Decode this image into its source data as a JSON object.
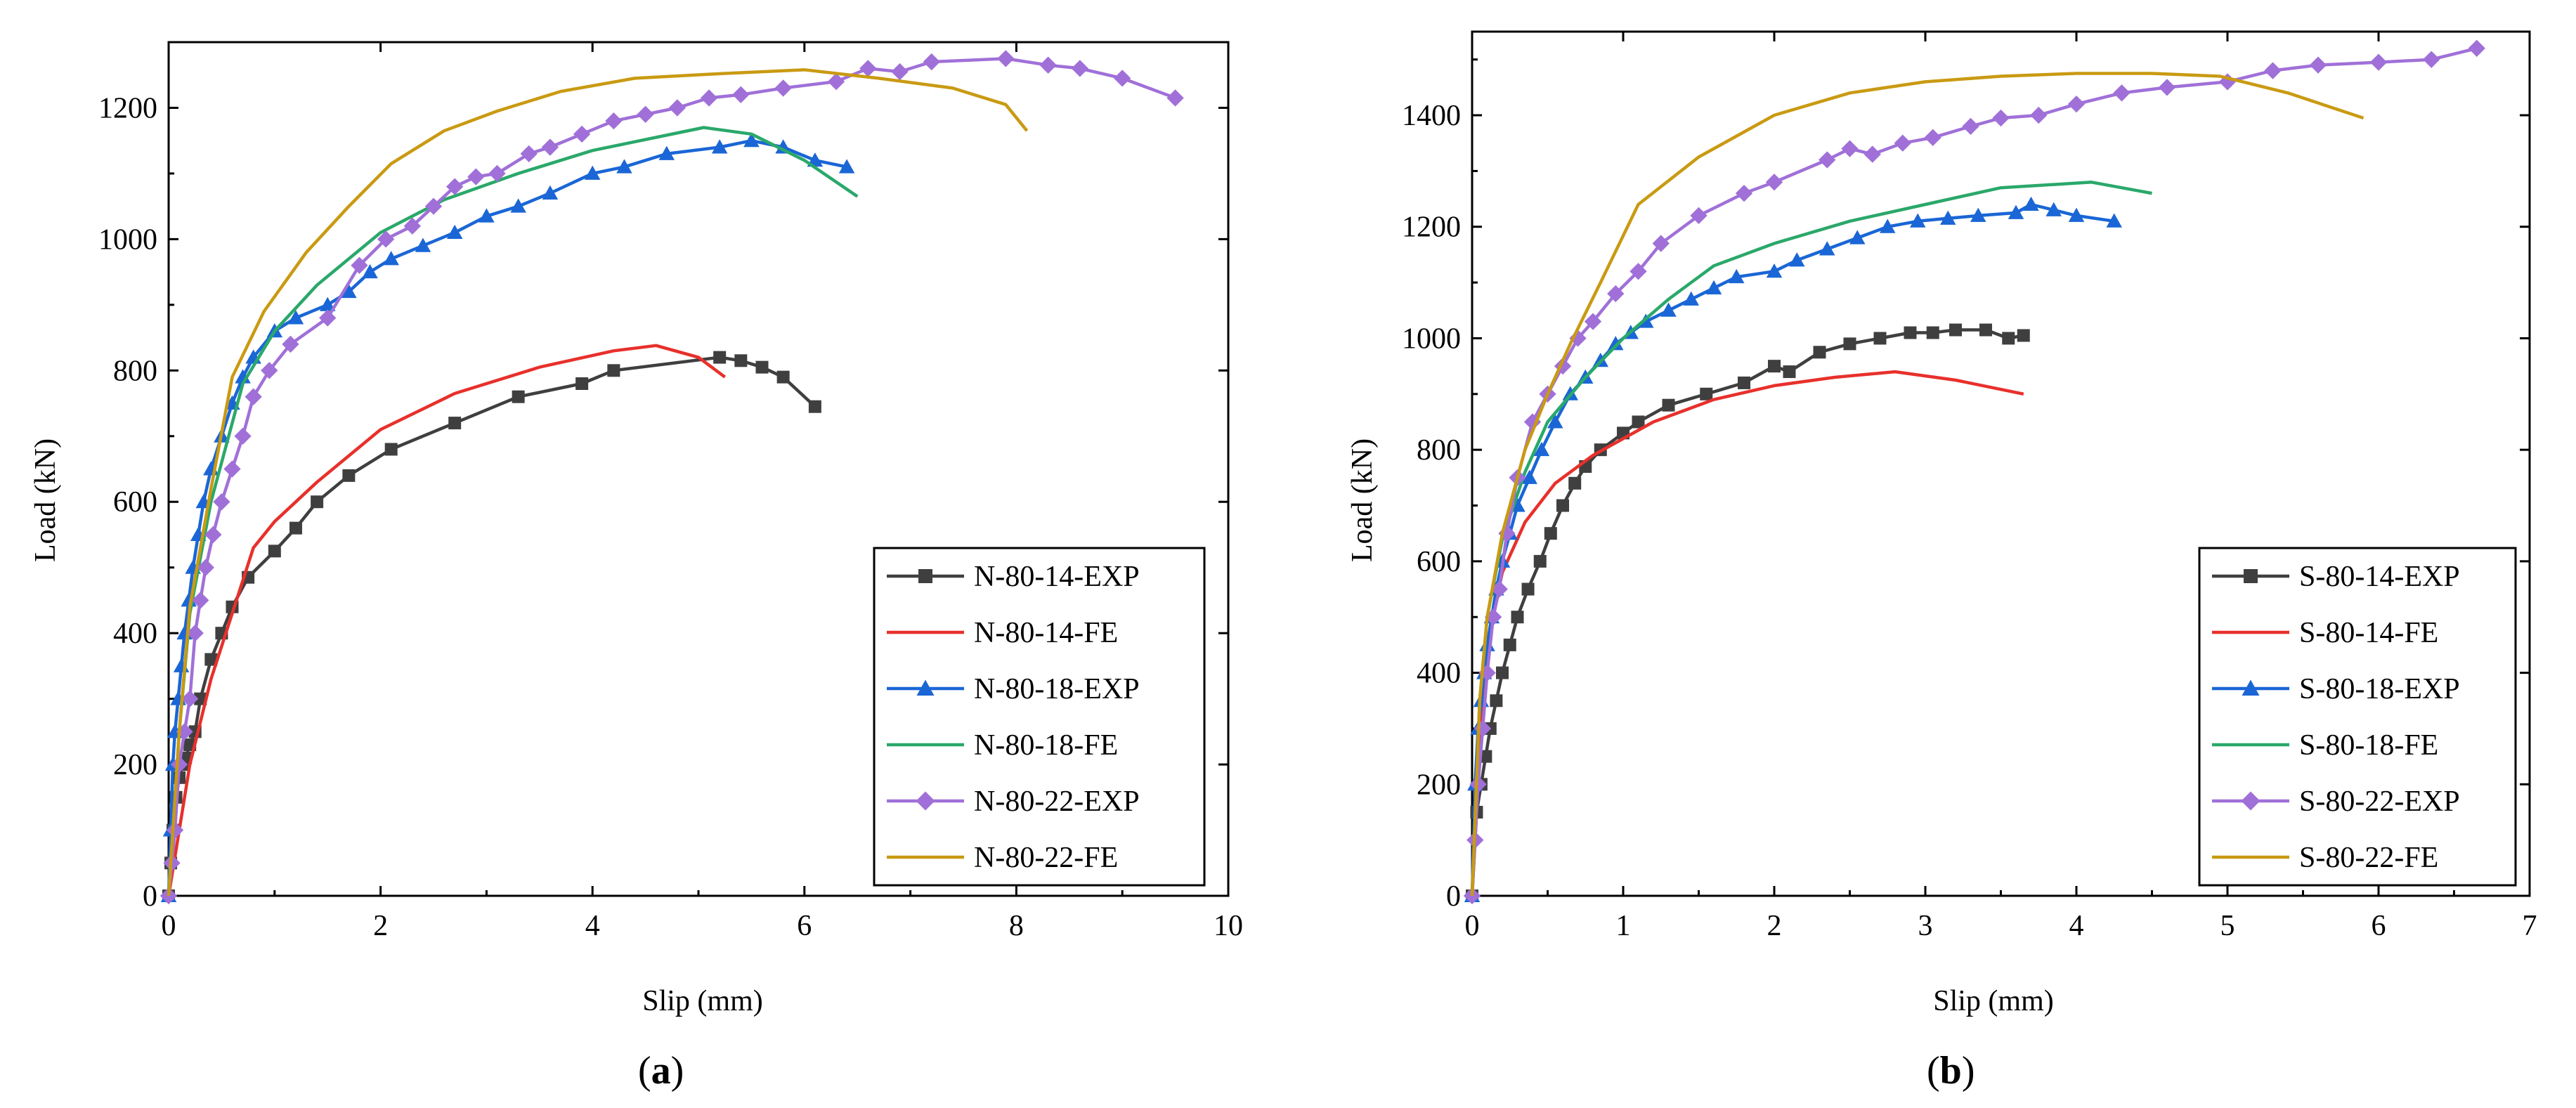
{
  "chart_data": [
    {
      "type": "line",
      "panel_label": "a",
      "title": "",
      "xlabel": "Slip (mm)",
      "ylabel": "Load (kN)",
      "xlim": [
        0,
        10
      ],
      "ylim": [
        0,
        1300
      ],
      "xticks": [
        0,
        2,
        4,
        6,
        8,
        10
      ],
      "yticks": [
        0,
        200,
        400,
        600,
        800,
        1000,
        1200
      ],
      "legend_position": "bottom-right",
      "grid": false,
      "series": [
        {
          "name": "N-80-14-EXP",
          "color": "#3f3f3f",
          "marker": "square",
          "x": [
            0,
            0.02,
            0.04,
            0.07,
            0.1,
            0.13,
            0.16,
            0.2,
            0.25,
            0.3,
            0.4,
            0.5,
            0.6,
            0.75,
            1.0,
            1.2,
            1.4,
            1.7,
            2.1,
            2.7,
            3.3,
            3.9,
            4.2,
            5.2,
            5.4,
            5.6,
            5.8,
            6.1
          ],
          "y": [
            0,
            50,
            100,
            150,
            180,
            200,
            210,
            230,
            250,
            300,
            360,
            400,
            440,
            485,
            525,
            560,
            600,
            640,
            680,
            720,
            760,
            780,
            800,
            820,
            815,
            805,
            790,
            745
          ]
        },
        {
          "name": "N-80-14-FE",
          "color": "#e8302b",
          "marker": "none",
          "x": [
            0,
            0.1,
            0.2,
            0.4,
            0.6,
            0.8,
            1.0,
            1.4,
            2.0,
            2.7,
            3.5,
            4.2,
            4.6,
            5.0,
            5.25
          ],
          "y": [
            0,
            100,
            200,
            330,
            430,
            530,
            570,
            630,
            710,
            765,
            805,
            830,
            838,
            820,
            790
          ]
        },
        {
          "name": "N-80-18-EXP",
          "color": "#1a66d6",
          "marker": "triangle",
          "x": [
            0,
            0.02,
            0.04,
            0.06,
            0.09,
            0.12,
            0.15,
            0.19,
            0.23,
            0.28,
            0.33,
            0.4,
            0.5,
            0.6,
            0.7,
            0.8,
            1.0,
            1.2,
            1.5,
            1.7,
            1.9,
            2.1,
            2.4,
            2.7,
            3.0,
            3.3,
            3.6,
            4.0,
            4.3,
            4.7,
            5.2,
            5.5,
            5.8,
            6.1,
            6.4
          ],
          "y": [
            0,
            100,
            200,
            250,
            300,
            350,
            400,
            450,
            500,
            550,
            600,
            650,
            700,
            750,
            790,
            820,
            860,
            880,
            900,
            920,
            950,
            970,
            990,
            1010,
            1035,
            1050,
            1070,
            1100,
            1110,
            1130,
            1140,
            1150,
            1140,
            1120,
            1110
          ]
        },
        {
          "name": "N-80-18-FE",
          "color": "#2aa86a",
          "marker": "none",
          "x": [
            0,
            0.1,
            0.2,
            0.4,
            0.7,
            1.0,
            1.4,
            2.0,
            2.6,
            3.3,
            4.0,
            4.6,
            5.05,
            5.5,
            6.0,
            6.5
          ],
          "y": [
            0,
            250,
            430,
            600,
            780,
            860,
            930,
            1010,
            1060,
            1100,
            1135,
            1155,
            1170,
            1160,
            1120,
            1065
          ]
        },
        {
          "name": "N-80-22-EXP",
          "color": "#a070d8",
          "marker": "diamond",
          "x": [
            0,
            0.03,
            0.06,
            0.1,
            0.15,
            0.2,
            0.25,
            0.3,
            0.35,
            0.42,
            0.5,
            0.6,
            0.7,
            0.8,
            0.95,
            1.15,
            1.5,
            1.8,
            2.05,
            2.3,
            2.5,
            2.7,
            2.9,
            3.1,
            3.4,
            3.6,
            3.9,
            4.2,
            4.5,
            4.8,
            5.1,
            5.4,
            5.8,
            6.3,
            6.6,
            6.9,
            7.2,
            7.9,
            8.3,
            8.6,
            9.0,
            9.5
          ],
          "y": [
            0,
            50,
            100,
            200,
            250,
            300,
            400,
            450,
            500,
            550,
            600,
            650,
            700,
            760,
            800,
            840,
            880,
            960,
            1000,
            1020,
            1050,
            1080,
            1095,
            1100,
            1130,
            1140,
            1160,
            1180,
            1190,
            1200,
            1215,
            1220,
            1230,
            1240,
            1260,
            1255,
            1270,
            1275,
            1265,
            1260,
            1245,
            1215
          ]
        },
        {
          "name": "N-80-22-FE",
          "color": "#c99a12",
          "marker": "none",
          "x": [
            0,
            0.1,
            0.2,
            0.4,
            0.6,
            0.9,
            1.3,
            1.7,
            2.1,
            2.6,
            3.1,
            3.7,
            4.4,
            5.2,
            6.0,
            6.7,
            7.4,
            7.9,
            8.1
          ],
          "y": [
            0,
            250,
            440,
            620,
            790,
            890,
            980,
            1050,
            1115,
            1165,
            1195,
            1225,
            1245,
            1252,
            1258,
            1245,
            1230,
            1205,
            1165
          ]
        }
      ]
    },
    {
      "type": "line",
      "panel_label": "b",
      "title": "",
      "xlabel": "Slip (mm)",
      "ylabel": "Load (kN)",
      "xlim": [
        0,
        7
      ],
      "ylim": [
        0,
        1550
      ],
      "xticks": [
        0,
        1,
        2,
        3,
        4,
        5,
        6,
        7
      ],
      "yticks": [
        0,
        200,
        400,
        600,
        800,
        1000,
        1200,
        1400
      ],
      "legend_position": "bottom-right",
      "grid": false,
      "series": [
        {
          "name": "S-80-14-EXP",
          "color": "#3f3f3f",
          "marker": "square",
          "x": [
            0,
            0.03,
            0.06,
            0.09,
            0.12,
            0.16,
            0.2,
            0.25,
            0.3,
            0.37,
            0.45,
            0.52,
            0.6,
            0.68,
            0.75,
            0.85,
            1.0,
            1.1,
            1.3,
            1.55,
            1.8,
            2.0,
            2.1,
            2.3,
            2.5,
            2.7,
            2.9,
            3.05,
            3.2,
            3.4,
            3.55,
            3.65
          ],
          "y": [
            0,
            150,
            200,
            250,
            300,
            350,
            400,
            450,
            500,
            550,
            600,
            650,
            700,
            740,
            770,
            800,
            830,
            850,
            880,
            900,
            920,
            950,
            940,
            975,
            990,
            1000,
            1010,
            1010,
            1015,
            1015,
            1000,
            1005
          ]
        },
        {
          "name": "S-80-14-FE",
          "color": "#e8302b",
          "marker": "none",
          "x": [
            0,
            0.05,
            0.1,
            0.2,
            0.35,
            0.55,
            0.8,
            1.2,
            1.6,
            2.0,
            2.4,
            2.8,
            3.2,
            3.65
          ],
          "y": [
            0,
            300,
            450,
            580,
            670,
            740,
            790,
            850,
            890,
            915,
            930,
            940,
            925,
            900
          ]
        },
        {
          "name": "S-80-18-EXP",
          "color": "#1a66d6",
          "marker": "triangle",
          "x": [
            0,
            0.02,
            0.04,
            0.06,
            0.08,
            0.1,
            0.13,
            0.16,
            0.2,
            0.25,
            0.3,
            0.38,
            0.46,
            0.55,
            0.65,
            0.75,
            0.85,
            0.95,
            1.05,
            1.15,
            1.3,
            1.45,
            1.6,
            1.75,
            2.0,
            2.15,
            2.35,
            2.55,
            2.75,
            2.95,
            3.15,
            3.35,
            3.6,
            3.7,
            3.85,
            4.0,
            4.25
          ],
          "y": [
            0,
            200,
            300,
            350,
            400,
            450,
            500,
            550,
            600,
            650,
            700,
            750,
            800,
            850,
            900,
            930,
            960,
            990,
            1010,
            1030,
            1050,
            1070,
            1090,
            1110,
            1120,
            1140,
            1160,
            1180,
            1200,
            1210,
            1215,
            1220,
            1225,
            1240,
            1230,
            1220,
            1210
          ]
        },
        {
          "name": "S-80-18-FE",
          "color": "#2aa86a",
          "marker": "none",
          "x": [
            0,
            0.05,
            0.1,
            0.2,
            0.35,
            0.5,
            0.75,
            1.0,
            1.3,
            1.6,
            2.0,
            2.5,
            3.0,
            3.5,
            4.1,
            4.5
          ],
          "y": [
            0,
            350,
            500,
            640,
            760,
            850,
            930,
            1000,
            1070,
            1130,
            1170,
            1210,
            1240,
            1270,
            1280,
            1260
          ]
        },
        {
          "name": "S-80-22-EXP",
          "color": "#a070d8",
          "marker": "diamond",
          "x": [
            0,
            0.02,
            0.04,
            0.07,
            0.1,
            0.14,
            0.18,
            0.23,
            0.3,
            0.4,
            0.5,
            0.6,
            0.7,
            0.8,
            0.95,
            1.1,
            1.25,
            1.5,
            1.8,
            2.0,
            2.35,
            2.5,
            2.65,
            2.85,
            3.05,
            3.3,
            3.5,
            3.75,
            4.0,
            4.3,
            4.6,
            5.0,
            5.3,
            5.6,
            6.0,
            6.35,
            6.65
          ],
          "y": [
            0,
            100,
            200,
            300,
            400,
            500,
            550,
            650,
            750,
            850,
            900,
            950,
            1000,
            1030,
            1080,
            1120,
            1170,
            1220,
            1260,
            1280,
            1320,
            1340,
            1330,
            1350,
            1360,
            1380,
            1395,
            1400,
            1420,
            1440,
            1450,
            1460,
            1480,
            1490,
            1495,
            1500,
            1520
          ]
        },
        {
          "name": "S-80-22-FE",
          "color": "#c99a12",
          "marker": "none",
          "x": [
            0,
            0.05,
            0.1,
            0.2,
            0.35,
            0.5,
            0.65,
            0.85,
            1.1,
            1.5,
            2.0,
            2.5,
            3.0,
            3.5,
            4.0,
            4.5,
            4.95,
            5.4,
            5.9
          ],
          "y": [
            0,
            350,
            500,
            650,
            800,
            900,
            990,
            1100,
            1240,
            1325,
            1400,
            1440,
            1460,
            1470,
            1475,
            1475,
            1470,
            1440,
            1395
          ]
        }
      ]
    }
  ]
}
